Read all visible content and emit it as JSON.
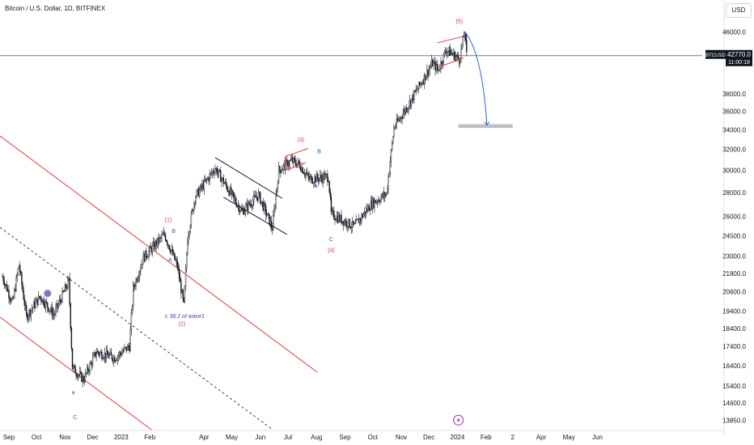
{
  "header": {
    "title": "Bitcoin / U.S. Dollar, 1D, BITFINEX",
    "currency_button": "USD"
  },
  "price_label": {
    "symbol": "BTCUSD",
    "price": "42770.0",
    "countdown": "11:00:18"
  },
  "colors": {
    "candle": "#131722",
    "channel": "#e53935",
    "dashed": "#434651",
    "wave_red": "#e53935",
    "wave_blue": "#3f51b5",
    "target_zone": "#b2b5be",
    "projection": "#2962ff"
  },
  "chart_data": {
    "type": "candlestick",
    "title": "Bitcoin / U.S. Dollar, 1D, BITFINEX",
    "y_ticks": [
      "46000.0",
      "38000.0",
      "36000.0",
      "34000.0",
      "32000.0",
      "30000.0",
      "28000.0",
      "26000.0",
      "24500.0",
      "23000.0",
      "21800.0",
      "20600.0",
      "19400.0",
      "18400.0",
      "17400.0",
      "16400.0",
      "15400.0",
      "14600.0",
      "13850.0"
    ],
    "x_ticks": [
      "Sep",
      "Oct",
      "Nov",
      "Dec",
      "2023",
      "Feb",
      "Apr",
      "May",
      "Jun",
      "Jul",
      "Aug",
      "Sep",
      "Oct",
      "Nov",
      "Dec",
      "2024",
      "Feb",
      "2",
      "Apr",
      "May",
      "Jun"
    ],
    "last_price": 42770,
    "path": [
      [
        "2022-08-25",
        21600
      ],
      [
        "2022-09-05",
        19900
      ],
      [
        "2022-09-12",
        22400
      ],
      [
        "2022-09-20",
        19100
      ],
      [
        "2022-10-05",
        20300
      ],
      [
        "2022-10-20",
        19200
      ],
      [
        "2022-11-05",
        21300
      ],
      [
        "2022-11-09",
        16300
      ],
      [
        "2022-11-21",
        15700
      ],
      [
        "2022-12-05",
        17100
      ],
      [
        "2022-12-25",
        16800
      ],
      [
        "2023-01-10",
        17400
      ],
      [
        "2023-01-14",
        20800
      ],
      [
        "2023-01-25",
        22900
      ],
      [
        "2023-02-17",
        24600
      ],
      [
        "2023-03-03",
        22300
      ],
      [
        "2023-03-10",
        19700
      ],
      [
        "2023-03-14",
        24400
      ],
      [
        "2023-03-22",
        27600
      ],
      [
        "2023-04-13",
        30200
      ],
      [
        "2023-05-12",
        26400
      ],
      [
        "2023-05-30",
        27800
      ],
      [
        "2023-06-14",
        25100
      ],
      [
        "2023-06-21",
        30000
      ],
      [
        "2023-07-05",
        30900
      ],
      [
        "2023-07-14",
        30500
      ],
      [
        "2023-07-24",
        29200
      ],
      [
        "2023-08-14",
        29400
      ],
      [
        "2023-08-17",
        26200
      ],
      [
        "2023-09-11",
        25200
      ],
      [
        "2023-09-29",
        27000
      ],
      [
        "2023-10-16",
        27900
      ],
      [
        "2023-10-24",
        34200
      ],
      [
        "2023-11-09",
        36800
      ],
      [
        "2023-12-05",
        41800
      ],
      [
        "2023-12-11",
        40900
      ],
      [
        "2023-12-20",
        43600
      ],
      [
        "2024-01-03",
        42300
      ],
      [
        "2024-01-09",
        46000
      ],
      [
        "2024-01-11",
        42770
      ]
    ],
    "annotations": [
      {
        "label": "(1)",
        "style": "red",
        "date": "2023-02-21",
        "value": 25600
      },
      {
        "label": "B",
        "style": "blue",
        "date": "2023-02-27",
        "value": 24700
      },
      {
        "label": "A",
        "style": "blue",
        "date": "2023-02-23",
        "value": 22600
      },
      {
        "label": "c 38.2 of wave1",
        "style": "purple",
        "date": "2023-03-11",
        "value": 19000
      },
      {
        "label": "(2)",
        "style": "red",
        "date": "2023-03-08",
        "value": 18550
      },
      {
        "label": "(3)",
        "style": "red",
        "date": "2023-07-15",
        "value": 32800
      },
      {
        "label": "B",
        "style": "blue",
        "date": "2023-08-04",
        "value": 31600
      },
      {
        "label": "A",
        "style": "blue",
        "date": "2023-07-31",
        "value": 28400
      },
      {
        "label": "C",
        "style": "blue",
        "date": "2023-08-17",
        "value": 24100
      },
      {
        "label": "(4)",
        "style": "red",
        "date": "2023-08-17",
        "value": 23300
      },
      {
        "label": "(5)",
        "style": "red",
        "date": "2024-01-03",
        "value": 47300
      },
      {
        "label": "v",
        "style": "dark",
        "date": "2022-11-10",
        "value": 15000
      },
      {
        "label": "C",
        "style": "red",
        "date": "2022-11-12",
        "value": 13900
      }
    ]
  }
}
